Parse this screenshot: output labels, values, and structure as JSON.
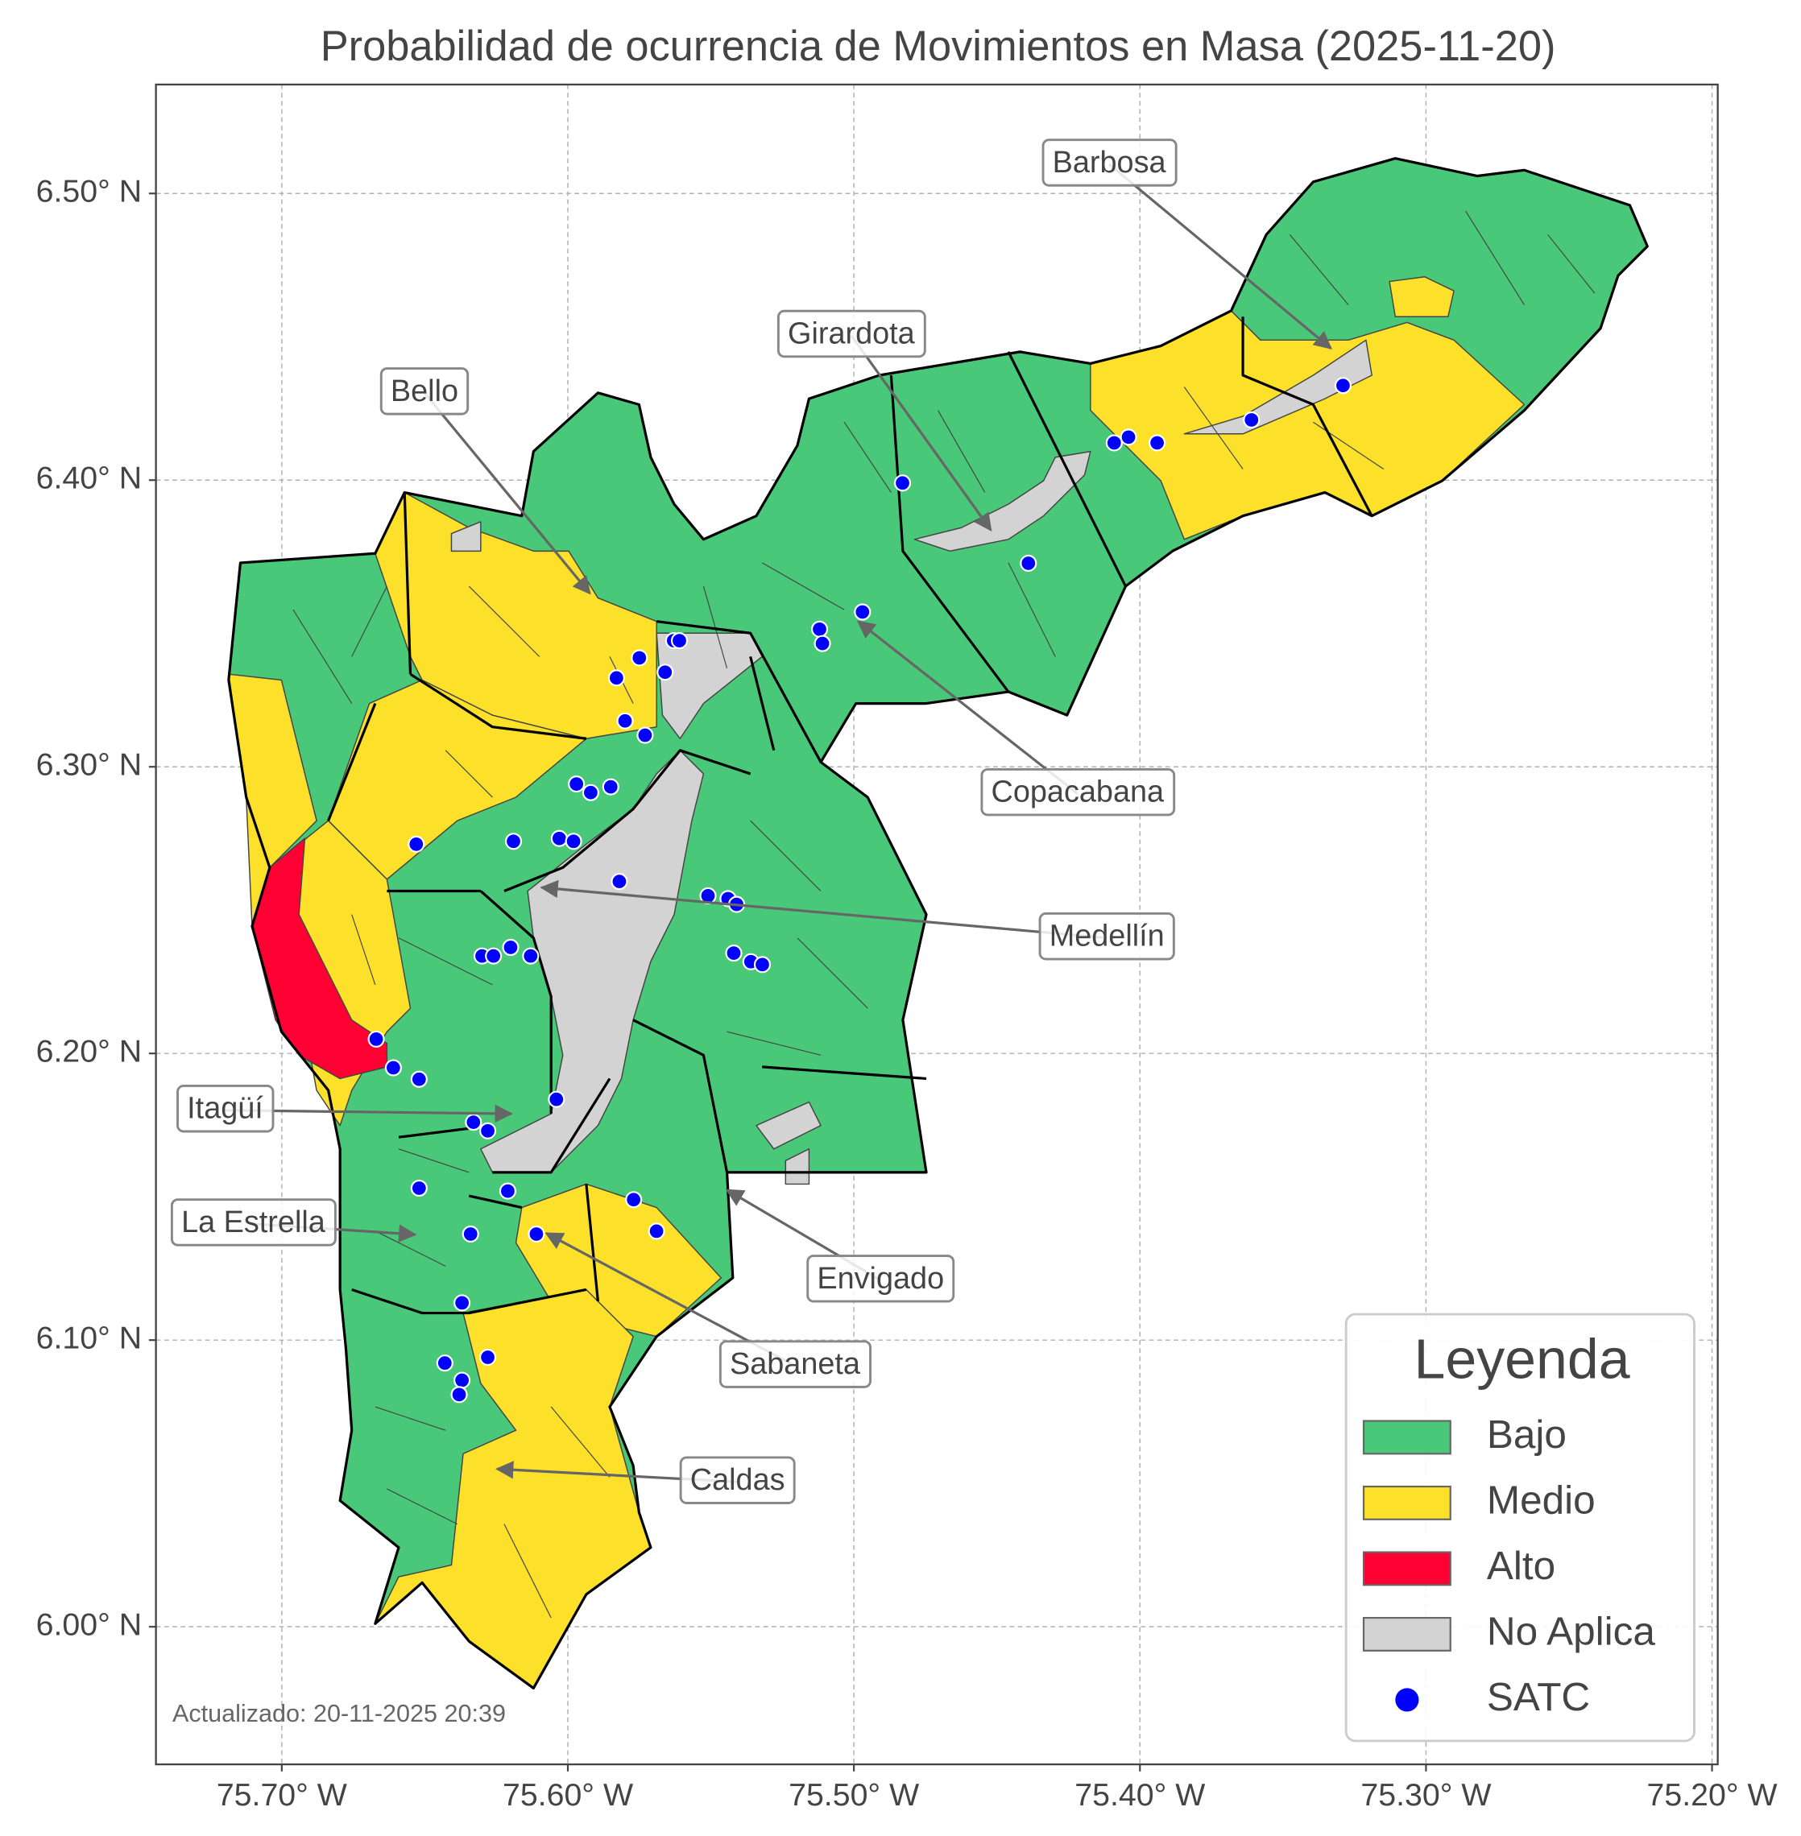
{
  "chart_data": {
    "type": "map",
    "title": "Probabilidad de ocurrencia de Movimientos en Masa (2025-11-20)",
    "xlim": [
      -75.744,
      -75.198
    ],
    "ylim": [
      5.952,
      6.538
    ],
    "xticks": [
      {
        "value": -75.7,
        "label": "75.70° W"
      },
      {
        "value": -75.6,
        "label": "75.60° W"
      },
      {
        "value": -75.5,
        "label": "75.50° W"
      },
      {
        "value": -75.4,
        "label": "75.40° W"
      },
      {
        "value": -75.3,
        "label": "75.30° W"
      },
      {
        "value": -75.2,
        "label": "75.20° W"
      }
    ],
    "yticks": [
      {
        "value": 6.0,
        "label": "6.00° N"
      },
      {
        "value": 6.1,
        "label": "6.10° N"
      },
      {
        "value": 6.2,
        "label": "6.20° N"
      },
      {
        "value": 6.3,
        "label": "6.30° N"
      },
      {
        "value": 6.4,
        "label": "6.40° N"
      },
      {
        "value": 6.5,
        "label": "6.50° N"
      }
    ],
    "grid": true,
    "legend": {
      "title": "Leyenda",
      "entries": [
        {
          "label": "Bajo",
          "color": "#48c878"
        },
        {
          "label": "Medio",
          "color": "#fce02a"
        },
        {
          "label": "Alto",
          "color": "#ff0033"
        },
        {
          "label": "No Aplica",
          "color": "#d3d3d3"
        }
      ]
    },
    "series": [
      {
        "name": "SATC",
        "color": "#0000ff",
        "x": [
          -75.483,
          -75.409,
          -75.404,
          -75.394,
          -75.361,
          -75.329,
          -75.439,
          -75.497,
          -75.512,
          -75.511,
          -75.563,
          -75.561,
          -75.575,
          -75.566,
          -75.583,
          -75.58,
          -75.573,
          -75.597,
          -75.592,
          -75.585,
          -75.619,
          -75.603,
          -75.598,
          -75.653,
          -75.582,
          -75.551,
          -75.544,
          -75.541,
          -75.542,
          -75.536,
          -75.532,
          -75.63,
          -75.626,
          -75.62,
          -75.613,
          -75.667,
          -75.661,
          -75.652,
          -75.604,
          -75.633,
          -75.628,
          -75.621,
          -75.652,
          -75.577,
          -75.569,
          -75.611,
          -75.634,
          -75.637,
          -75.643,
          -75.628,
          -75.637,
          -75.638
        ],
        "y": [
          6.399,
          6.413,
          6.415,
          6.413,
          6.421,
          6.433,
          6.371,
          6.354,
          6.348,
          6.343,
          6.344,
          6.344,
          6.338,
          6.333,
          6.331,
          6.316,
          6.311,
          6.294,
          6.291,
          6.293,
          6.274,
          6.275,
          6.274,
          6.273,
          6.26,
          6.255,
          6.254,
          6.252,
          6.235,
          6.232,
          6.231,
          6.234,
          6.234,
          6.237,
          6.234,
          6.205,
          6.195,
          6.191,
          6.184,
          6.176,
          6.173,
          6.152,
          6.153,
          6.149,
          6.138,
          6.137,
          6.137,
          6.113,
          6.092,
          6.094,
          6.086,
          6.081
        ]
      }
    ],
    "annotations": [
      "Barbosa",
      "Girardota",
      "Bello",
      "Copacabana",
      "Medellín",
      "Itagüí",
      "La Estrella",
      "Envigado",
      "Sabaneta",
      "Caldas"
    ],
    "footnote": "Actualizado: 20-11-2025 20:39"
  }
}
